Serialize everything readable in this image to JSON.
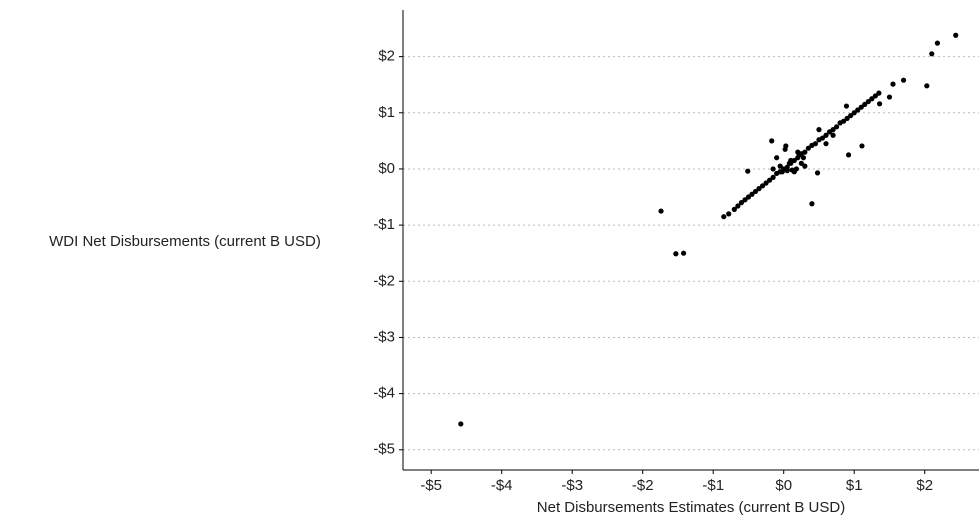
{
  "chart_data": {
    "type": "scatter",
    "x_label": "Net Disbursements Estimates (current B USD)",
    "y_label": "WDI Net Disbursements (current B USD)",
    "color": "#000000",
    "grid": true,
    "xlim": [
      -5.4,
      2.77
    ],
    "ylim": [
      -5.36,
      2.83
    ],
    "xticks": [
      {
        "value": -5,
        "label": "-$5"
      },
      {
        "value": -4,
        "label": "-$4"
      },
      {
        "value": -3,
        "label": "-$3"
      },
      {
        "value": -2,
        "label": "-$2"
      },
      {
        "value": -1,
        "label": "-$1"
      },
      {
        "value": 0,
        "label": "$0"
      },
      {
        "value": 1,
        "label": "$1"
      },
      {
        "value": 2,
        "label": "$2"
      }
    ],
    "yticks": [
      {
        "value": -5,
        "label": "-$5"
      },
      {
        "value": -4,
        "label": "-$4"
      },
      {
        "value": -3,
        "label": "-$3"
      },
      {
        "value": -2,
        "label": "-$2"
      },
      {
        "value": -1,
        "label": "-$1"
      },
      {
        "value": 0,
        "label": "$0"
      },
      {
        "value": 1,
        "label": "$1"
      },
      {
        "value": 2,
        "label": "$2"
      }
    ],
    "x": [
      2.44,
      2.18,
      2.1,
      2.03,
      1.7,
      1.55,
      1.5,
      1.36,
      0.92,
      -1.74,
      -1.42,
      -1.53,
      -4.58,
      -0.85,
      0.4,
      -0.17,
      -0.51,
      0.48,
      0.89,
      1.11,
      0.03,
      -0.78,
      -0.7,
      -0.65,
      -0.6,
      -0.55,
      -0.5,
      -0.45,
      -0.4,
      -0.35,
      -0.3,
      -0.25,
      -0.2,
      -0.15,
      -0.1,
      -0.05,
      0.05,
      0.1,
      0.15,
      0.2,
      0.25,
      0.3,
      0.35,
      0.4,
      0.45,
      0.5,
      0.55,
      0.6,
      0.65,
      0.7,
      0.75,
      0.8,
      0.85,
      0.9,
      0.95,
      1.0,
      1.05,
      1.1,
      1.15,
      1.2,
      1.25,
      1.3,
      1.35,
      0.0,
      0.05,
      -0.05,
      0.1,
      0.15,
      0.2,
      0.25,
      -0.1,
      0.3,
      0.02,
      0.12,
      0.22,
      -0.02,
      0.08,
      0.18,
      0.28,
      -0.15,
      0.6,
      0.7,
      0.5
    ],
    "values": [
      2.38,
      2.24,
      2.05,
      1.48,
      1.58,
      1.51,
      1.28,
      1.16,
      0.25,
      -0.75,
      -1.5,
      -1.51,
      -4.54,
      -0.85,
      -0.62,
      0.5,
      -0.04,
      -0.07,
      1.12,
      0.41,
      0.41,
      -0.8,
      -0.72,
      -0.66,
      -0.6,
      -0.55,
      -0.5,
      -0.45,
      -0.4,
      -0.35,
      -0.3,
      -0.25,
      -0.2,
      -0.15,
      -0.08,
      -0.05,
      0.03,
      0.1,
      0.15,
      0.2,
      0.27,
      0.3,
      0.37,
      0.42,
      0.45,
      0.52,
      0.55,
      0.6,
      0.66,
      0.7,
      0.75,
      0.82,
      0.85,
      0.9,
      0.95,
      1.0,
      1.05,
      1.1,
      1.15,
      1.2,
      1.25,
      1.3,
      1.35,
      0.0,
      -0.03,
      0.05,
      0.15,
      -0.05,
      0.3,
      0.1,
      0.2,
      0.05,
      0.35,
      -0.02,
      0.25,
      -0.05,
      0.1,
      0.0,
      0.2,
      0.0,
      0.45,
      0.6,
      0.7
    ]
  }
}
